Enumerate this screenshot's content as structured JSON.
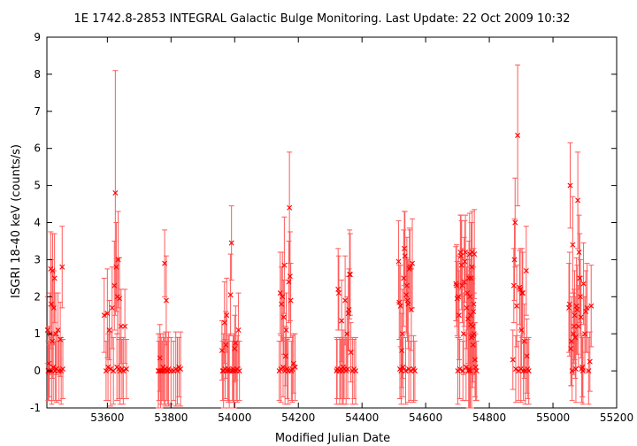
{
  "chart_data": {
    "type": "scatter",
    "title": "1E 1742.8-2853   INTEGRAL Galactic Bulge Monitoring.  Last Update: 22 Oct 2009 10:32",
    "xlabel": "Modified Julian Date",
    "ylabel": "ISGRI 18-40 keV (counts/s)",
    "xlim": [
      53410,
      55200
    ],
    "ylim": [
      -1,
      9
    ],
    "x_ticks": [
      "53600",
      "53800",
      "54000",
      "54200",
      "54400",
      "54600",
      "54800",
      "55000",
      "55200"
    ],
    "y_ticks": [
      "-1",
      "0",
      "1",
      "2",
      "3",
      "4",
      "5",
      "6",
      "7",
      "8",
      "9"
    ],
    "grid": false,
    "legend": "none",
    "marker": "x",
    "color": "#ff0000",
    "errorbar_color": "#ff5a5a",
    "points": [
      [
        53412,
        1.1,
        0.9
      ],
      [
        53414,
        0.0,
        0.8
      ],
      [
        53416,
        0.2,
        1.0
      ],
      [
        53418,
        0.0,
        0.7
      ],
      [
        53420,
        1.0,
        1.1
      ],
      [
        53422,
        2.75,
        1.0
      ],
      [
        53424,
        1.8,
        1.2
      ],
      [
        53425,
        0.0,
        0.9
      ],
      [
        53427,
        0.8,
        1.0
      ],
      [
        53428,
        2.7,
        1.0
      ],
      [
        53430,
        0.1,
        0.9
      ],
      [
        53432,
        1.7,
        1.0
      ],
      [
        53434,
        2.5,
        1.2
      ],
      [
        53436,
        0.0,
        0.8
      ],
      [
        53438,
        1.0,
        1.1
      ],
      [
        53440,
        0.05,
        0.9
      ],
      [
        53445,
        1.1,
        1.0
      ],
      [
        53448,
        0.0,
        0.8
      ],
      [
        53452,
        0.85,
        1.0
      ],
      [
        53455,
        0.0,
        0.9
      ],
      [
        53458,
        2.8,
        1.1
      ],
      [
        53460,
        0.05,
        0.8
      ],
      [
        53590,
        1.5,
        1.0
      ],
      [
        53596,
        0.0,
        0.8
      ],
      [
        53600,
        1.55,
        1.2
      ],
      [
        53602,
        0.1,
        0.9
      ],
      [
        53606,
        1.1,
        0.8
      ],
      [
        53610,
        0.05,
        1.0
      ],
      [
        53615,
        1.7,
        1.1
      ],
      [
        53619,
        0.0,
        0.9
      ],
      [
        53622,
        2.3,
        1.2
      ],
      [
        53625,
        4.8,
        3.3
      ],
      [
        53628,
        2.8,
        1.2
      ],
      [
        53630,
        0.1,
        0.9
      ],
      [
        53632,
        2.0,
        1.0
      ],
      [
        53634,
        3.0,
        1.3
      ],
      [
        53636,
        0.05,
        0.8
      ],
      [
        53638,
        1.95,
        1.1
      ],
      [
        53640,
        0.0,
        0.9
      ],
      [
        53643,
        1.2,
        1.0
      ],
      [
        53646,
        0.05,
        0.8
      ],
      [
        53650,
        0.0,
        0.9
      ],
      [
        53655,
        1.2,
        1.0
      ],
      [
        53660,
        0.05,
        0.8
      ],
      [
        53760,
        0.0,
        1.0
      ],
      [
        53762,
        0.0,
        0.8
      ],
      [
        53765,
        0.35,
        0.9
      ],
      [
        53767,
        0.0,
        1.0
      ],
      [
        53769,
        0.0,
        0.9
      ],
      [
        53772,
        0.0,
        0.8
      ],
      [
        53775,
        0.1,
        0.9
      ],
      [
        53778,
        0.0,
        0.9
      ],
      [
        53780,
        2.9,
        0.9
      ],
      [
        53782,
        0.05,
        1.0
      ],
      [
        53785,
        1.9,
        1.2
      ],
      [
        53787,
        0.0,
        0.8
      ],
      [
        53790,
        0.0,
        0.9
      ],
      [
        53792,
        0.05,
        1.0
      ],
      [
        53800,
        0.0,
        0.9
      ],
      [
        53808,
        0.0,
        0.8
      ],
      [
        53815,
        0.05,
        1.0
      ],
      [
        53820,
        0.0,
        0.9
      ],
      [
        53825,
        0.1,
        0.8
      ],
      [
        53830,
        0.05,
        1.0
      ],
      [
        53960,
        0.55,
        0.8
      ],
      [
        53962,
        0.0,
        0.8
      ],
      [
        53965,
        0.0,
        1.0
      ],
      [
        53968,
        1.3,
        1.1
      ],
      [
        53970,
        0.05,
        0.8
      ],
      [
        53972,
        0.7,
        0.9
      ],
      [
        53975,
        1.5,
        1.0
      ],
      [
        53978,
        0.0,
        0.8
      ],
      [
        53980,
        0.05,
        0.9
      ],
      [
        53983,
        0.0,
        1.0
      ],
      [
        53987,
        2.05,
        1.1
      ],
      [
        53990,
        3.45,
        1.0
      ],
      [
        53993,
        0.0,
        0.8
      ],
      [
        53995,
        0.05,
        0.9
      ],
      [
        53998,
        0.0,
        1.0
      ],
      [
        54000,
        0.6,
        0.9
      ],
      [
        54003,
        0.75,
        1.0
      ],
      [
        54005,
        0.0,
        0.8
      ],
      [
        54008,
        0.05,
        0.9
      ],
      [
        54012,
        1.1,
        1.0
      ],
      [
        54015,
        0.0,
        0.8
      ],
      [
        54140,
        0.0,
        0.8
      ],
      [
        54143,
        2.1,
        1.1
      ],
      [
        54145,
        0.05,
        0.9
      ],
      [
        54147,
        1.8,
        1.0
      ],
      [
        54150,
        2.0,
        1.2
      ],
      [
        54152,
        0.1,
        0.8
      ],
      [
        54154,
        1.45,
        1.0
      ],
      [
        54156,
        2.85,
        1.3
      ],
      [
        54158,
        0.0,
        0.9
      ],
      [
        54160,
        0.4,
        0.8
      ],
      [
        54162,
        1.1,
        1.0
      ],
      [
        54165,
        0.05,
        0.8
      ],
      [
        54168,
        0.0,
        0.9
      ],
      [
        54170,
        2.4,
        1.1
      ],
      [
        54172,
        4.4,
        1.5
      ],
      [
        54174,
        2.55,
        1.2
      ],
      [
        54176,
        1.9,
        1.0
      ],
      [
        54178,
        0.0,
        0.8
      ],
      [
        54181,
        0.05,
        0.9
      ],
      [
        54185,
        0.2,
        0.8
      ],
      [
        54190,
        0.1,
        0.9
      ],
      [
        54320,
        0.0,
        0.9
      ],
      [
        54322,
        0.05,
        0.8
      ],
      [
        54325,
        2.2,
        1.1
      ],
      [
        54327,
        2.1,
        1.0
      ],
      [
        54330,
        0.0,
        0.9
      ],
      [
        54333,
        0.05,
        0.8
      ],
      [
        54336,
        1.35,
        1.1
      ],
      [
        54338,
        0.0,
        0.9
      ],
      [
        54341,
        0.1,
        1.0
      ],
      [
        54344,
        0.05,
        0.8
      ],
      [
        54347,
        1.9,
        1.2
      ],
      [
        54350,
        0.0,
        0.9
      ],
      [
        54353,
        1.0,
        1.0
      ],
      [
        54355,
        0.05,
        0.8
      ],
      [
        54357,
        1.55,
        1.0
      ],
      [
        54359,
        1.65,
        1.1
      ],
      [
        54361,
        2.6,
        1.2
      ],
      [
        54363,
        2.6,
        1.1
      ],
      [
        54365,
        0.5,
        0.8
      ],
      [
        54370,
        0.0,
        0.9
      ],
      [
        54375,
        0.05,
        0.8
      ],
      [
        54380,
        0.0,
        0.9
      ],
      [
        54515,
        2.95,
        1.1
      ],
      [
        54517,
        1.85,
        1.0
      ],
      [
        54519,
        0.05,
        0.8
      ],
      [
        54521,
        1.75,
        1.1
      ],
      [
        54523,
        0.0,
        0.9
      ],
      [
        54525,
        0.55,
        1.0
      ],
      [
        54527,
        1.0,
        1.2
      ],
      [
        54529,
        0.1,
        0.8
      ],
      [
        54531,
        2.5,
        1.3
      ],
      [
        54533,
        3.3,
        1.0
      ],
      [
        54535,
        3.1,
        1.2
      ],
      [
        54537,
        0.0,
        0.9
      ],
      [
        54539,
        2.05,
        1.0
      ],
      [
        54541,
        2.3,
        1.3
      ],
      [
        54543,
        1.9,
        1.1
      ],
      [
        54545,
        1.8,
        1.2
      ],
      [
        54547,
        0.05,
        0.9
      ],
      [
        54549,
        2.75,
        1.1
      ],
      [
        54551,
        2.8,
        1.0
      ],
      [
        54553,
        0.0,
        0.8
      ],
      [
        54555,
        1.65,
        1.1
      ],
      [
        54558,
        2.9,
        1.2
      ],
      [
        54562,
        0.05,
        0.9
      ],
      [
        54566,
        0.0,
        0.8
      ],
      [
        54695,
        2.35,
        1.0
      ],
      [
        54697,
        2.3,
        1.1
      ],
      [
        54699,
        1.95,
        1.0
      ],
      [
        54701,
        0.0,
        0.9
      ],
      [
        54703,
        2.0,
        1.1
      ],
      [
        54705,
        1.5,
        1.2
      ],
      [
        54707,
        0.05,
        0.8
      ],
      [
        54709,
        3.2,
        1.0
      ],
      [
        54711,
        3.1,
        1.1
      ],
      [
        54713,
        2.85,
        1.2
      ],
      [
        54715,
        2.3,
        1.0
      ],
      [
        54717,
        0.0,
        0.8
      ],
      [
        54719,
        1.0,
        1.1
      ],
      [
        54721,
        2.4,
        1.2
      ],
      [
        54723,
        2.95,
        1.1
      ],
      [
        54725,
        3.2,
        1.0
      ],
      [
        54727,
        0.1,
        0.9
      ],
      [
        54729,
        1.7,
        1.1
      ],
      [
        54731,
        2.1,
        1.0
      ],
      [
        54733,
        1.4,
        1.2
      ],
      [
        54735,
        0.0,
        1.5
      ],
      [
        54736,
        2.5,
        1.0
      ],
      [
        54737,
        0.05,
        1.8
      ],
      [
        54738,
        3.15,
        1.1
      ],
      [
        54739,
        2.0,
        1.0
      ],
      [
        54740,
        0.0,
        1.9
      ],
      [
        54741,
        1.5,
        1.2
      ],
      [
        54742,
        1.25,
        1.3
      ],
      [
        54743,
        2.5,
        1.5
      ],
      [
        54744,
        0.9,
        2.4
      ],
      [
        54745,
        2.8,
        1.2
      ],
      [
        54746,
        3.2,
        1.1
      ],
      [
        54747,
        0.95,
        1.4
      ],
      [
        54748,
        1.2,
        1.3
      ],
      [
        54749,
        0.7,
        1.0
      ],
      [
        54750,
        1.6,
        1.2
      ],
      [
        54751,
        1.8,
        1.5
      ],
      [
        54752,
        1.0,
        1.1
      ],
      [
        54753,
        3.15,
        1.2
      ],
      [
        54755,
        0.3,
        1.0
      ],
      [
        54757,
        0.1,
        0.9
      ],
      [
        54760,
        0.0,
        0.8
      ],
      [
        54874,
        0.3,
        0.8
      ],
      [
        54877,
        2.3,
        1.0
      ],
      [
        54879,
        3.0,
        1.1
      ],
      [
        54881,
        4.0,
        1.2
      ],
      [
        54883,
        0.05,
        0.9
      ],
      [
        54886,
        1.75,
        1.1
      ],
      [
        54889,
        6.35,
        1.9
      ],
      [
        54892,
        0.0,
        0.8
      ],
      [
        54895,
        2.25,
        1.0
      ],
      [
        54897,
        2.2,
        1.1
      ],
      [
        54899,
        0.05,
        0.9
      ],
      [
        54901,
        1.1,
        1.0
      ],
      [
        54903,
        2.1,
        1.2
      ],
      [
        54905,
        2.1,
        1.1
      ],
      [
        54907,
        0.0,
        0.8
      ],
      [
        54910,
        0.8,
        1.0
      ],
      [
        54913,
        0.0,
        0.9
      ],
      [
        54916,
        2.7,
        1.2
      ],
      [
        54918,
        0.4,
        1.0
      ],
      [
        54920,
        0.05,
        0.8
      ],
      [
        54924,
        0.0,
        0.9
      ],
      [
        55050,
        1.7,
        1.2
      ],
      [
        55052,
        1.8,
        1.4
      ],
      [
        55054,
        5.0,
        1.15
      ],
      [
        55056,
        0.6,
        1.0
      ],
      [
        55058,
        0.8,
        1.2
      ],
      [
        55060,
        0.0,
        0.8
      ],
      [
        55062,
        3.4,
        1.3
      ],
      [
        55064,
        1.0,
        1.1
      ],
      [
        55066,
        1.2,
        1.0
      ],
      [
        55068,
        1.5,
        1.2
      ],
      [
        55070,
        0.9,
        1.1
      ],
      [
        55072,
        0.05,
        0.9
      ],
      [
        55074,
        1.75,
        1.3
      ],
      [
        55076,
        1.65,
        1.2
      ],
      [
        55078,
        4.6,
        1.3
      ],
      [
        55080,
        1.2,
        1.1
      ],
      [
        55082,
        3.2,
        1.0
      ],
      [
        55084,
        2.5,
        1.2
      ],
      [
        55086,
        2.0,
        1.0
      ],
      [
        55088,
        1.45,
        1.1
      ],
      [
        55090,
        0.05,
        0.9
      ],
      [
        55092,
        0.1,
        0.8
      ],
      [
        55094,
        0.0,
        0.9
      ],
      [
        55096,
        2.35,
        1.1
      ],
      [
        55100,
        1.0,
        1.0
      ],
      [
        55103,
        1.6,
        1.1
      ],
      [
        55107,
        1.7,
        1.2
      ],
      [
        55112,
        0.0,
        0.9
      ],
      [
        55116,
        0.25,
        0.8
      ],
      [
        55120,
        1.75,
        1.1
      ]
    ]
  }
}
